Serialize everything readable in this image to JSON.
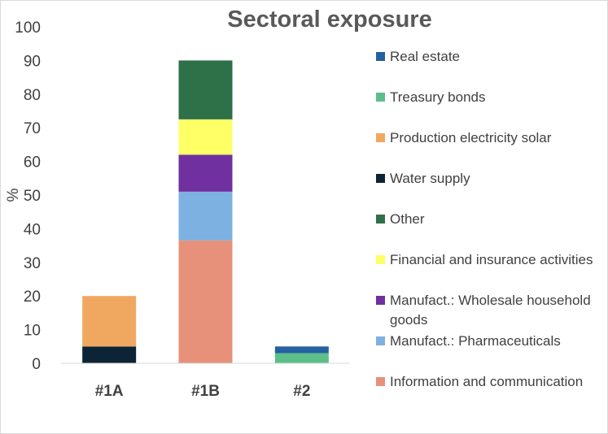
{
  "chart_data": {
    "type": "bar",
    "stacked": true,
    "title": "Sectoral exposure",
    "xlabel": "",
    "ylabel": "%",
    "ylim": [
      0,
      100
    ],
    "yticks": [
      0,
      10,
      20,
      30,
      40,
      50,
      60,
      70,
      80,
      90,
      100
    ],
    "grid": false,
    "legend_position": "right",
    "categories": [
      "#1A",
      "#1B",
      "#2"
    ],
    "series": [
      {
        "name": "Information and communication",
        "color": "#E8917A",
        "values": [
          0,
          36.5,
          0
        ]
      },
      {
        "name": "Manufact.: Pharmaceuticals",
        "color": "#7DB1E1",
        "values": [
          0,
          14.5,
          0
        ]
      },
      {
        "name": "Manufact.: Wholesale household goods",
        "color": "#7030A0",
        "values": [
          0,
          11,
          0
        ]
      },
      {
        "name": "Financial and insurance activities",
        "color": "#FFFF66",
        "values": [
          0,
          10.5,
          0
        ]
      },
      {
        "name": "Other",
        "color": "#2E7048",
        "values": [
          0,
          17.5,
          0
        ]
      },
      {
        "name": "Water supply",
        "color": "#0D2436",
        "values": [
          5,
          0,
          0
        ]
      },
      {
        "name": "Production electricity solar",
        "color": "#F0A860",
        "values": [
          15,
          0,
          0
        ]
      },
      {
        "name": "Treasury bonds",
        "color": "#5CBF8A",
        "values": [
          0,
          0,
          3
        ]
      },
      {
        "name": "Real estate",
        "color": "#2461A0",
        "values": [
          0,
          0,
          2
        ]
      }
    ],
    "legend_order": [
      "Real estate",
      "Treasury bonds",
      "Production electricity solar",
      "Water supply",
      "Other",
      "Financial and insurance activities",
      "Manufact.: Wholesale household goods",
      "Manufact.: Pharmaceuticals",
      "Information and communication"
    ]
  }
}
